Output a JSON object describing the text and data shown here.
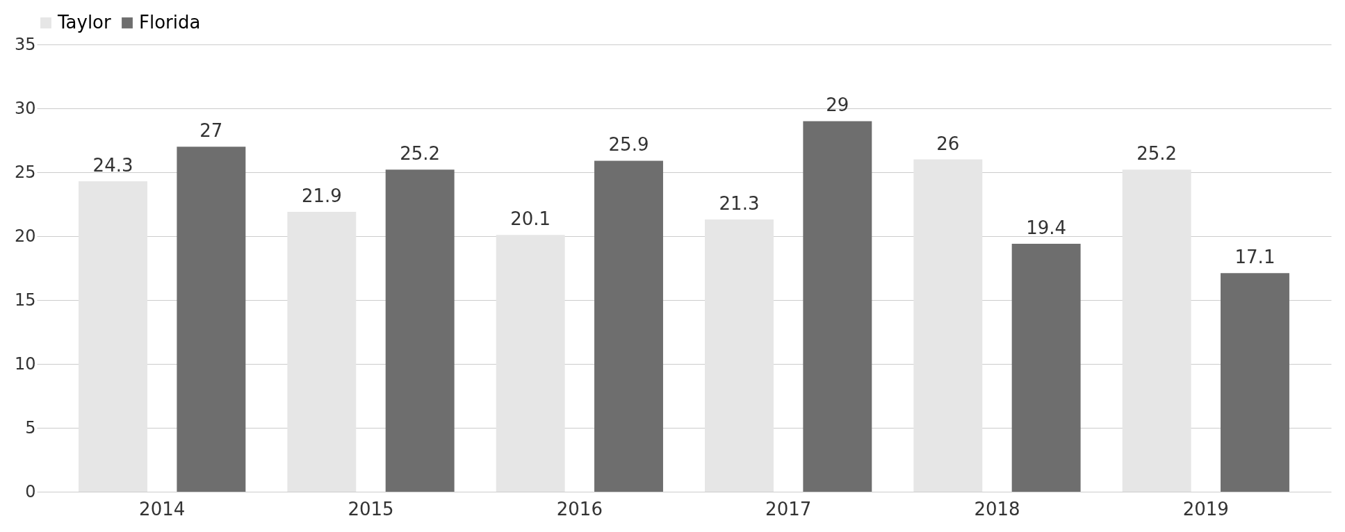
{
  "chart_data": {
    "type": "bar",
    "categories": [
      "2014",
      "2015",
      "2016",
      "2017",
      "2018",
      "2019"
    ],
    "series": [
      {
        "name": "Taylor",
        "color": "#e6e6e6",
        "values": [
          24.3,
          21.9,
          20.1,
          21.3,
          26,
          25.2
        ]
      },
      {
        "name": "Florida",
        "color": "#6e6e6e",
        "values": [
          27,
          25.2,
          25.9,
          29,
          19.4,
          17.1
        ]
      }
    ],
    "ylim": [
      0,
      35
    ],
    "yticks": [
      0,
      5,
      10,
      15,
      20,
      25,
      30,
      35
    ],
    "grid": "y",
    "legend": "top",
    "data_labels": true
  }
}
